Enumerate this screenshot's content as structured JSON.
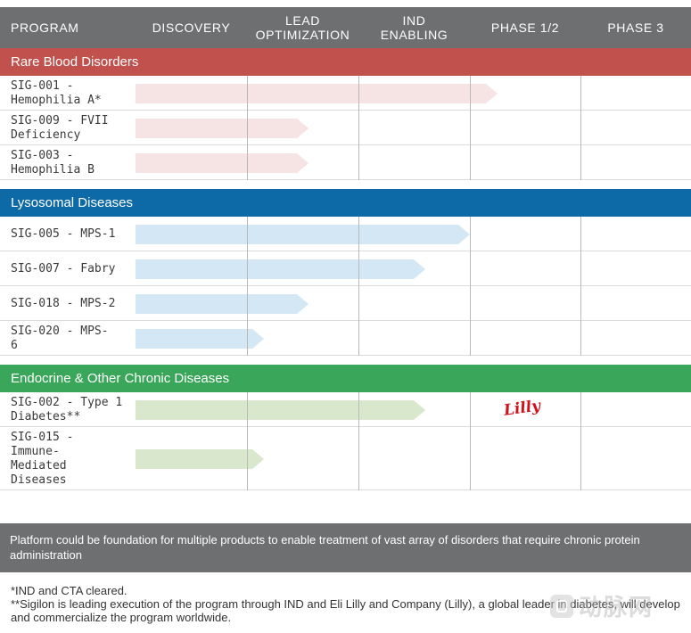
{
  "header": {
    "columns": [
      "PROGRAM",
      "DISCOVERY",
      "LEAD\nOPTIMIZATION",
      "IND\nENABLING",
      "PHASE 1/2",
      "PHASE 3"
    ]
  },
  "stages": [
    "Discovery",
    "Lead Optimization",
    "IND Enabling",
    "Phase 1/2",
    "Phase 3"
  ],
  "sections": [
    {
      "title": "Rare Blood Disorders",
      "header_color": "#c0514d",
      "bar_color": "#f6e3e3",
      "programs": [
        {
          "label": "SIG-001 -\nHemophilia A*",
          "progress": 3.25
        },
        {
          "label": "SIG-009 - FVII\nDeficiency",
          "progress": 1.55
        },
        {
          "label": "SIG-003 -\nHemophilia B",
          "progress": 1.55
        }
      ]
    },
    {
      "title": "Lysosomal Diseases",
      "header_color": "#0d6aa6",
      "bar_color": "#d4e7f4",
      "programs": [
        {
          "label": "SIG-005 - MPS-1",
          "progress": 3.0
        },
        {
          "label": "SIG-007 - Fabry",
          "progress": 2.6
        },
        {
          "label": "SIG-018 - MPS-2",
          "progress": 1.55
        },
        {
          "label": "SIG-020 - MPS-\n6",
          "progress": 1.15
        }
      ]
    },
    {
      "title": "Endocrine & Other Chronic Diseases",
      "header_color": "#3aa659",
      "bar_color": "#d9e8cd",
      "programs": [
        {
          "label": "SIG-002 - Type 1\nDiabetes**",
          "progress": 2.6,
          "partner": "Lilly"
        },
        {
          "label": "SIG-015 -\nImmune-\nMediated\nDiseases",
          "progress": 1.15
        }
      ]
    }
  ],
  "banner": "Platform could be foundation for multiple products to enable treatment of vast array of disorders that require chronic protein administration",
  "footnotes": [
    "*IND and CTA cleared.",
    "**Sigilon is leading execution of the program through IND and Eli Lilly and Company (Lilly), a global leader in diabetes, will develop and commercialize the program worldwide."
  ],
  "watermark": "动脉网",
  "watermark_icon": "watermark-logo-icon"
}
